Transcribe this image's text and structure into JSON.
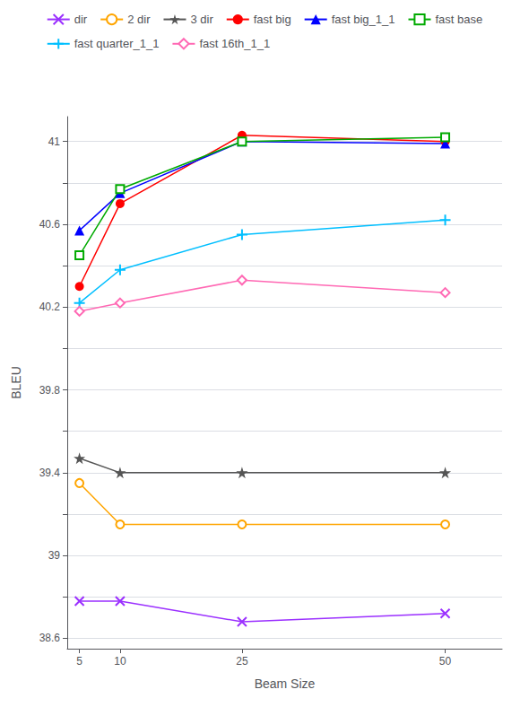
{
  "chart_data": {
    "type": "line",
    "x": [
      5,
      10,
      25,
      50
    ],
    "xlabel": "Beam Size",
    "ylabel": "BLEU",
    "xlim": [
      3.5,
      57
    ],
    "xticks": [
      5,
      10,
      25,
      50
    ],
    "ylim": [
      38.55,
      41.12
    ],
    "yticks": [
      38.6,
      {
        "value": 38.8,
        "label": ""
      },
      39.0,
      {
        "value": 39.2,
        "label": ""
      },
      39.4,
      {
        "value": 39.6,
        "label": ""
      },
      39.8,
      {
        "value": 40.0,
        "label": ""
      },
      40.2,
      {
        "value": 40.4,
        "label": ""
      },
      40.6,
      {
        "value": 40.8,
        "label": ""
      },
      41.0
    ],
    "grid": true,
    "legend": "top",
    "series": [
      {
        "name": "dir",
        "color": "#9B30FF",
        "marker": "x",
        "line_style": "solid",
        "values": [
          38.78,
          38.78,
          38.68,
          38.72
        ]
      },
      {
        "name": "2 dir",
        "color": "#FFA500",
        "marker": "circle-open",
        "line_style": "solid",
        "values": [
          39.35,
          39.15,
          39.15,
          39.15
        ]
      },
      {
        "name": "3 dir",
        "color": "#555555",
        "marker": "star",
        "line_style": "solid",
        "values": [
          39.47,
          39.4,
          39.4,
          39.4
        ]
      },
      {
        "name": "fast big",
        "color": "#FF0000",
        "marker": "circle",
        "line_style": "solid",
        "values": [
          40.3,
          40.7,
          41.03,
          41.0
        ]
      },
      {
        "name": "fast big_1_1",
        "color": "#0000FF",
        "marker": "triangle",
        "line_style": "solid",
        "values": [
          40.57,
          40.75,
          41.0,
          40.99
        ]
      },
      {
        "name": "fast base",
        "color": "#00AA00",
        "marker": "square-open",
        "line_style": "solid",
        "values": [
          40.45,
          40.77,
          41.0,
          41.02
        ]
      },
      {
        "name": "fast quarter_1_1",
        "color": "#00BFFF",
        "marker": "plus",
        "line_style": "solid",
        "values": [
          40.22,
          40.38,
          40.55,
          40.62
        ]
      },
      {
        "name": "fast 16th_1_1",
        "color": "#FF69B4",
        "marker": "diamond-open",
        "line_style": "solid",
        "values": [
          40.18,
          40.22,
          40.33,
          40.27
        ]
      }
    ]
  }
}
